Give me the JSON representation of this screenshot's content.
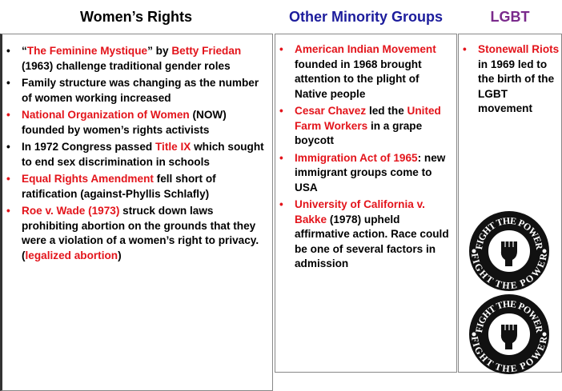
{
  "columns": [
    {
      "title": "Women’s Rights",
      "title_color": "#000000",
      "bullets": [
        {
          "bullet_color": "#000000",
          "runs": [
            {
              "text": "“"
            },
            {
              "text": "The Feminine Mystique",
              "color": "#e3141b"
            },
            {
              "text": "” by "
            },
            {
              "text": "Betty Friedan",
              "color": "#e3141b"
            },
            {
              "text": " (1963) challenge traditional gender roles"
            }
          ]
        },
        {
          "bullet_color": "#000000",
          "runs": [
            {
              "text": "Family structure was changing as the number of women working increased"
            }
          ]
        },
        {
          "bullet_color": "#e3141b",
          "runs": [
            {
              "text": "National Organization of Women",
              "color": "#e3141b"
            },
            {
              "text": " (NOW) founded by women’s rights activists"
            }
          ]
        },
        {
          "bullet_color": "#000000",
          "runs": [
            {
              "text": "In 1972 Congress passed "
            },
            {
              "text": "Title IX",
              "color": "#e3141b"
            },
            {
              "text": " which sought to end sex discrimination in schools"
            }
          ]
        },
        {
          "bullet_color": "#e3141b",
          "runs": [
            {
              "text": "Equal Rights Amendment",
              "color": "#e3141b"
            },
            {
              "text": " fell short of ratification (against-Phyllis Schlafly)"
            }
          ]
        },
        {
          "bullet_color": "#e3141b",
          "runs": [
            {
              "text": "Roe v. Wade (1973)",
              "color": "#e3141b"
            },
            {
              "text": " struck down laws prohibiting abortion on the grounds that they were a violation of a women’s right to privacy. ("
            },
            {
              "text": "legalized abortion",
              "color": "#e3141b"
            },
            {
              "text": ")"
            }
          ]
        }
      ]
    },
    {
      "title": "Other Minority Groups",
      "title_color": "#1c1c9c",
      "bullets": [
        {
          "bullet_color": "#e3141b",
          "runs": [
            {
              "text": "American Indian Movement",
              "color": "#e3141b"
            },
            {
              "text": " founded in 1968 brought attention to the plight of Native people"
            }
          ]
        },
        {
          "bullet_color": "#e3141b",
          "runs": [
            {
              "text": "Cesar Chavez",
              "color": "#e3141b"
            },
            {
              "text": " led the "
            },
            {
              "text": "United Farm Workers",
              "color": "#e3141b"
            },
            {
              "text": " in a grape boycott"
            }
          ]
        },
        {
          "bullet_color": "#e3141b",
          "runs": [
            {
              "text": "Immigration Act of 1965",
              "color": "#e3141b"
            },
            {
              "text": ": new immigrant groups come to USA"
            }
          ]
        },
        {
          "bullet_color": "#e3141b",
          "runs": [
            {
              "text": "University of California v. Bakke",
              "color": "#e3141b"
            },
            {
              "text": " (1978) upheld affirmative action. Race could be one of several factors in admission"
            }
          ]
        }
      ]
    },
    {
      "title": "LGBT",
      "title_color": "#7a2a8c",
      "bullets": [
        {
          "bullet_color": "#e3141b",
          "runs": [
            {
              "text": "Stonewall Riots",
              "color": "#e3141b"
            },
            {
              "text": " in 1969 led to the birth of the LGBT movement"
            }
          ]
        }
      ]
    }
  ],
  "badges": [
    {
      "top": "FIGHT THE POWER",
      "bottom": "FIGHT THE POWER"
    },
    {
      "top": "FIGHT THE POWER",
      "bottom": "FIGHT THE POWER"
    }
  ]
}
